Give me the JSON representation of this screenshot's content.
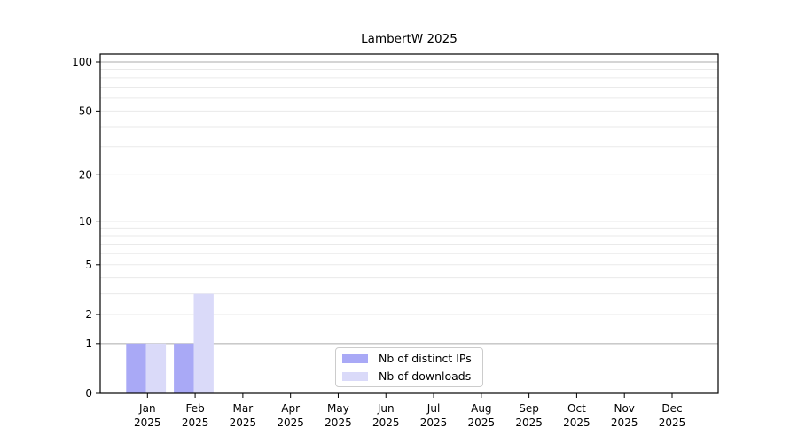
{
  "chart_data": {
    "type": "bar",
    "title": "LambertW 2025",
    "categories": [
      "Jan",
      "Feb",
      "Mar",
      "Apr",
      "May",
      "Jun",
      "Jul",
      "Aug",
      "Sep",
      "Oct",
      "Nov",
      "Dec"
    ],
    "category_year": "2025",
    "series": [
      {
        "name": "Nb of distinct IPs",
        "color": "#a9a9f6",
        "values": [
          1,
          1,
          0,
          0,
          0,
          0,
          0,
          0,
          0,
          0,
          0,
          0
        ]
      },
      {
        "name": "Nb of downloads",
        "color": "#dadaf9",
        "values": [
          1,
          3,
          0,
          0,
          0,
          0,
          0,
          0,
          0,
          0,
          0,
          0
        ]
      }
    ],
    "xlabel": "",
    "ylabel": "",
    "y_axis": {
      "scale": "log10(1+x)",
      "ticks": [
        0,
        1,
        2,
        5,
        10,
        20,
        50,
        100
      ],
      "ylim": [
        0,
        112
      ],
      "major_gridlines": [
        1,
        10,
        100
      ],
      "minor_gridlines": [
        2,
        3,
        4,
        5,
        6,
        7,
        8,
        9,
        20,
        30,
        40,
        50,
        60,
        70,
        80,
        90
      ]
    },
    "legend_position": "lower center",
    "grid": true,
    "colors": {
      "major_grid": "#ababab",
      "minor_grid": "#eaeaea",
      "axis": "#000000",
      "tick_text": "#000000",
      "background": "#ffffff"
    }
  }
}
